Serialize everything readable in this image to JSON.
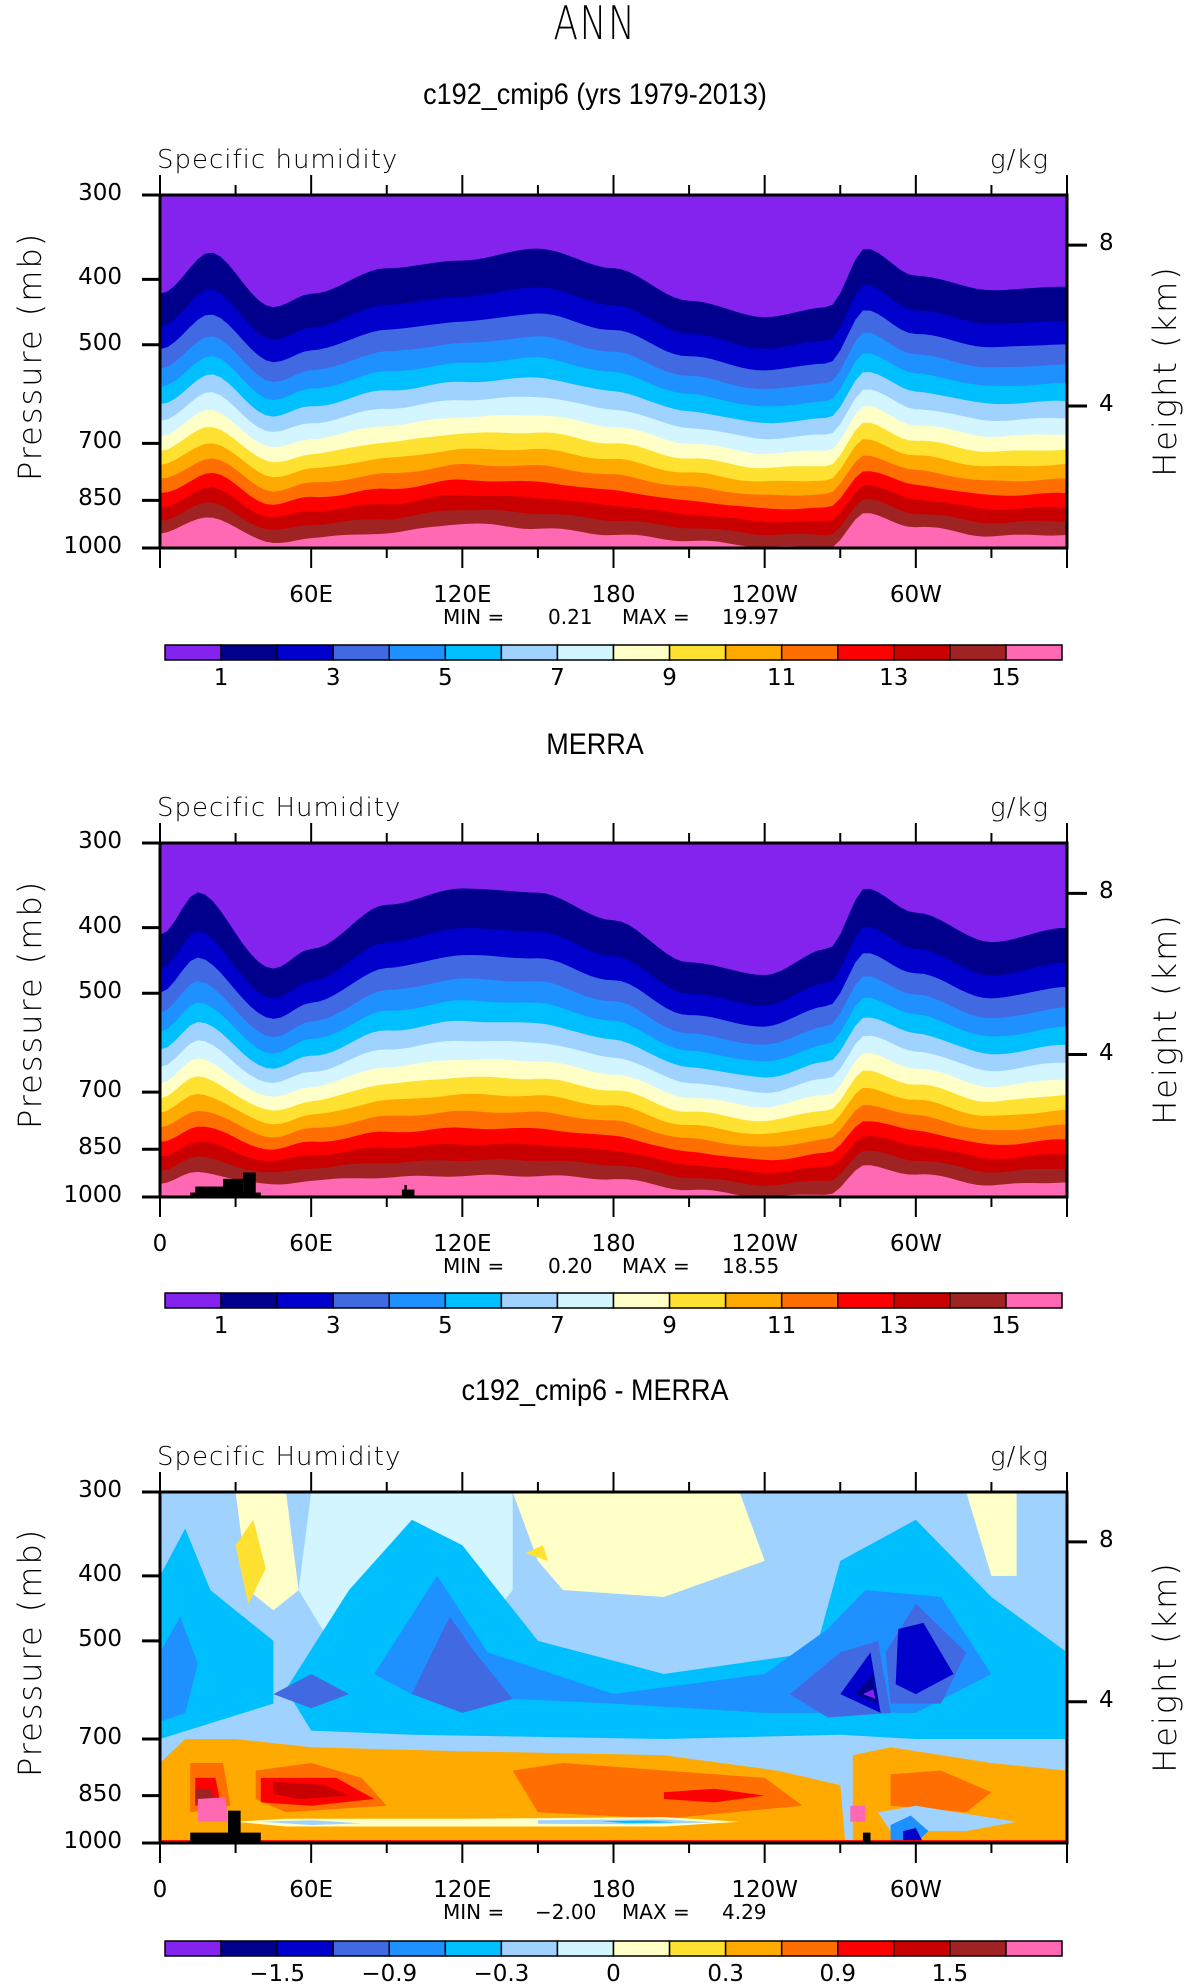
{
  "figure": {
    "title": "ANN"
  },
  "colors": {
    "abs_levels": [
      "#8422ee",
      "#00008c",
      "#0000cd",
      "#4169e1",
      "#1e90ff",
      "#00bfff",
      "#a0d2ff",
      "#d2f5ff",
      "#ffffc8",
      "#ffe132",
      "#ffaa00",
      "#ff6e00",
      "#ff0000",
      "#c80000",
      "#a02323",
      "#ff69b4"
    ],
    "missing": "#000000"
  },
  "chart_data": [
    {
      "type": "heatmap",
      "title": "c192_cmip6 (yrs 1979-2013)",
      "left_label": "Specific humidity",
      "right_label": "g/kg",
      "ylabel": "Pressure (mb)",
      "y2label": "Height (km)",
      "xlabel": "",
      "y_ticks": [
        "300",
        "400",
        "500",
        "700",
        "850",
        "1000"
      ],
      "y2_ticks": [
        "8",
        "4"
      ],
      "x_ticks": [
        "",
        "60E",
        "120E",
        "180",
        "120W",
        "60W"
      ],
      "xlim": [
        0,
        360
      ],
      "ylim": [
        1000,
        300
      ],
      "min_label": "MIN =",
      "min_value": "0.21",
      "max_label": "MAX =",
      "max_value": "19.97",
      "colorbar_levels": [
        1,
        2,
        3,
        4,
        5,
        6,
        7,
        8,
        9,
        10,
        11,
        12,
        13,
        14,
        15
      ],
      "colorbar_labels": [
        "1",
        "3",
        "5",
        "7",
        "9",
        "11",
        "13",
        "15"
      ],
      "contour_boundaries_mb": {
        "description": "approx pressure (mb) of contour level boundaries vs longitude",
        "lon": [
          0,
          20,
          45,
          60,
          90,
          120,
          150,
          180,
          210,
          240,
          265,
          280,
          300,
          330,
          360
        ],
        "q1": [
          420,
          365,
          440,
          420,
          385,
          375,
          360,
          385,
          430,
          455,
          440,
          360,
          395,
          415,
          410
        ],
        "q15": [
          950,
          900,
          985,
          965,
          950,
          920,
          935,
          955,
          975,
          995,
          1000,
          890,
          930,
          960,
          955
        ]
      }
    },
    {
      "type": "heatmap",
      "title": "MERRA",
      "left_label": "Specific Humidity",
      "right_label": "g/kg",
      "ylabel": "Pressure (mb)",
      "y2label": "Height (km)",
      "xlabel": "",
      "y_ticks": [
        "300",
        "400",
        "500",
        "700",
        "850",
        "1000"
      ],
      "y2_ticks": [
        "8",
        "4"
      ],
      "x_ticks": [
        "0",
        "60E",
        "120E",
        "180",
        "120W",
        "60W"
      ],
      "xlim": [
        0,
        360
      ],
      "ylim": [
        1000,
        300
      ],
      "min_label": "MIN =",
      "min_value": "0.20",
      "max_label": "MAX =",
      "max_value": "18.55",
      "colorbar_levels": [
        1,
        2,
        3,
        4,
        5,
        6,
        7,
        8,
        9,
        10,
        11,
        12,
        13,
        14,
        15
      ],
      "colorbar_labels": [
        "1",
        "3",
        "5",
        "7",
        "9",
        "11",
        "13",
        "15"
      ],
      "contour_boundaries_mb": {
        "lon": [
          0,
          15,
          45,
          60,
          90,
          120,
          150,
          180,
          210,
          240,
          265,
          280,
          300,
          330,
          360
        ],
        "q1": [
          410,
          355,
          460,
          430,
          370,
          350,
          355,
          390,
          450,
          470,
          430,
          350,
          380,
          420,
          400
        ],
        "q15": [
          955,
          920,
          960,
          945,
          935,
          930,
          930,
          940,
          975,
          1000,
          990,
          900,
          925,
          960,
          950
        ]
      }
    },
    {
      "type": "heatmap",
      "title": "c192_cmip6 - MERRA",
      "left_label": "Specific Humidity",
      "right_label": "g/kg",
      "ylabel": "Pressure (mb)",
      "y2label": "Height (km)",
      "xlabel": "",
      "y_ticks": [
        "300",
        "400",
        "500",
        "700",
        "850",
        "1000"
      ],
      "y2_ticks": [
        "8",
        "4"
      ],
      "x_ticks": [
        "0",
        "60E",
        "120E",
        "180",
        "120W",
        "60W"
      ],
      "xlim": [
        0,
        360
      ],
      "ylim": [
        1000,
        300
      ],
      "min_label": "MIN =",
      "min_value": "−2.00",
      "max_label": "MAX =",
      "max_value": "4.29",
      "colorbar_levels": [
        -1.8,
        -1.5,
        -1.2,
        -0.9,
        -0.6,
        -0.3,
        -0.1,
        0,
        0.1,
        0.3,
        0.6,
        0.9,
        1.2,
        1.5,
        1.8
      ],
      "colorbar_labels": [
        "−1.5",
        "−0.9",
        "−0.3",
        "0",
        "0.3",
        "0.9",
        "1.5"
      ],
      "features": [
        {
          "name": "upper-level moist bias (light blue/yellow)",
          "pressure_range_mb": [
            300,
            450
          ]
        },
        {
          "name": "mid-level dry bias (blue)",
          "pressure_range_mb": [
            450,
            700
          ],
          "min_near_lon": 285
        },
        {
          "name": "lower-level moist bias (orange/red)",
          "pressure_range_mb": [
            700,
            900
          ],
          "max_near_lon": [
            70,
            240
          ]
        }
      ]
    }
  ]
}
